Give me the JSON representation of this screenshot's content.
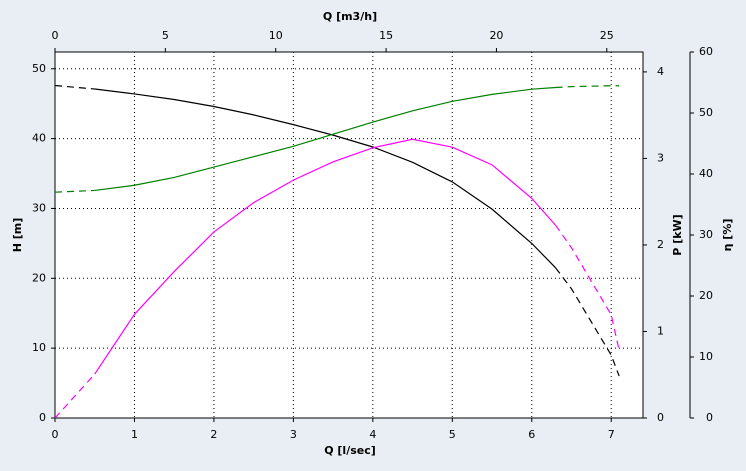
{
  "chart_data": {
    "type": "line",
    "xlabel": "Q [l/sec]",
    "x2label": "Q [m3/h]",
    "ylabel": "H [m]",
    "y2label": "P [kW]",
    "y3label": "η [%]",
    "xlim": [
      0,
      7.4
    ],
    "xticks": [
      0,
      1,
      2,
      3,
      4,
      5,
      6,
      7
    ],
    "x2lim": [
      0,
      26.64
    ],
    "x2ticks": [
      0,
      5,
      10,
      15,
      20,
      25
    ],
    "ylim": [
      0,
      52.4
    ],
    "yticks": [
      0,
      10,
      20,
      30,
      40,
      50
    ],
    "y2lim": [
      0,
      4.23
    ],
    "y2ticks": [
      0,
      1,
      2,
      3,
      4
    ],
    "y3lim": [
      0,
      60
    ],
    "y3ticks": [
      0,
      10,
      20,
      30,
      40,
      50,
      60
    ],
    "grid": true,
    "x": [
      0,
      0.5,
      1,
      1.5,
      2,
      2.5,
      3,
      3.5,
      4,
      4.5,
      5,
      5.5,
      6,
      6.3,
      6.5,
      7,
      7.1
    ],
    "series": [
      {
        "color": "#000000",
        "axis": "y",
        "dash": [
          "dashed",
          "solid",
          "solid",
          "solid",
          "solid",
          "solid",
          "solid",
          "solid",
          "solid",
          "solid",
          "solid",
          "solid",
          "solid",
          "dashed",
          "dashed",
          "dashed"
        ],
        "values": [
          47.6,
          47.1,
          46.4,
          45.6,
          44.6,
          43.4,
          42.0,
          40.5,
          38.8,
          36.6,
          33.8,
          29.9,
          25.0,
          21.5,
          18.5,
          9,
          6
        ]
      },
      {
        "color": "#008000",
        "axis": "y2",
        "dash": [
          "dashed",
          "solid",
          "solid",
          "solid",
          "solid",
          "solid",
          "solid",
          "solid",
          "solid",
          "solid",
          "solid",
          "solid",
          "solid",
          "dashed",
          "dashed",
          "dashed"
        ],
        "values": [
          2.61,
          2.63,
          2.69,
          2.78,
          2.9,
          3.02,
          3.14,
          3.28,
          3.42,
          3.55,
          3.66,
          3.74,
          3.8,
          3.82,
          3.83,
          3.84,
          3.84
        ]
      },
      {
        "color": "#ff00ff",
        "axis": "y3",
        "dash": [
          "dashed",
          "solid",
          "solid",
          "solid",
          "solid",
          "solid",
          "solid",
          "solid",
          "solid",
          "solid",
          "solid",
          "solid",
          "solid",
          "dashed",
          "dashed",
          "dashed"
        ],
        "values": [
          0,
          7.2,
          17,
          24,
          30.5,
          35.3,
          39,
          42,
          44.3,
          45.7,
          44.4,
          41.5,
          36,
          31.6,
          27.9,
          16.9,
          11.1
        ]
      }
    ]
  }
}
